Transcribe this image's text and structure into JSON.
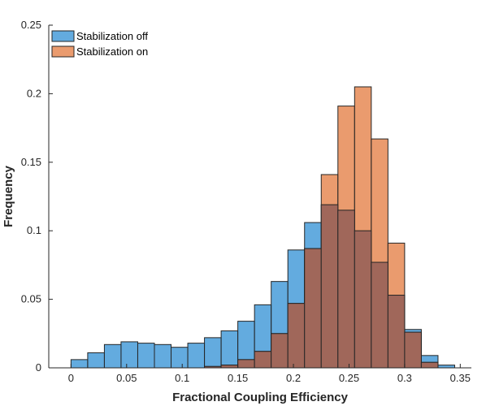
{
  "chart_data": {
    "type": "histogram",
    "xlabel": "Fractional Coupling Efficiency",
    "ylabel": "Frequency",
    "xlim": [
      -0.02,
      0.36
    ],
    "ylim": [
      0,
      0.25
    ],
    "xticks": [
      "0",
      "0.05",
      "0.1",
      "0.15",
      "0.2",
      "0.25",
      "0.3",
      "0.35"
    ],
    "yticks": [
      "0",
      "0.05",
      "0.1",
      "0.15",
      "0.2",
      "0.25"
    ],
    "grid": false,
    "legend_position": "top-left",
    "bin_width": 0.015,
    "bin_starts": [
      0.0,
      0.015,
      0.03,
      0.045,
      0.06,
      0.075,
      0.09,
      0.105,
      0.12,
      0.135,
      0.15,
      0.165,
      0.18,
      0.195,
      0.21,
      0.225,
      0.24,
      0.255,
      0.27,
      0.285,
      0.3,
      0.315,
      0.33
    ],
    "series": [
      {
        "name": "Stabilization off",
        "color": "#2f8fd4",
        "values": [
          0.006,
          0.011,
          0.017,
          0.019,
          0.018,
          0.017,
          0.015,
          0.018,
          0.022,
          0.027,
          0.034,
          0.046,
          0.063,
          0.086,
          0.106,
          0.119,
          0.115,
          0.1,
          0.077,
          0.053,
          0.028,
          0.009,
          0.002
        ]
      },
      {
        "name": "Stabilization on",
        "color": "#e3793d",
        "values": [
          0.0,
          0.0,
          0.0,
          0.0,
          0.0,
          0.0,
          0.0,
          0.0,
          0.001,
          0.002,
          0.006,
          0.012,
          0.025,
          0.047,
          0.087,
          0.141,
          0.191,
          0.205,
          0.167,
          0.091,
          0.026,
          0.004,
          0.0
        ]
      }
    ]
  }
}
